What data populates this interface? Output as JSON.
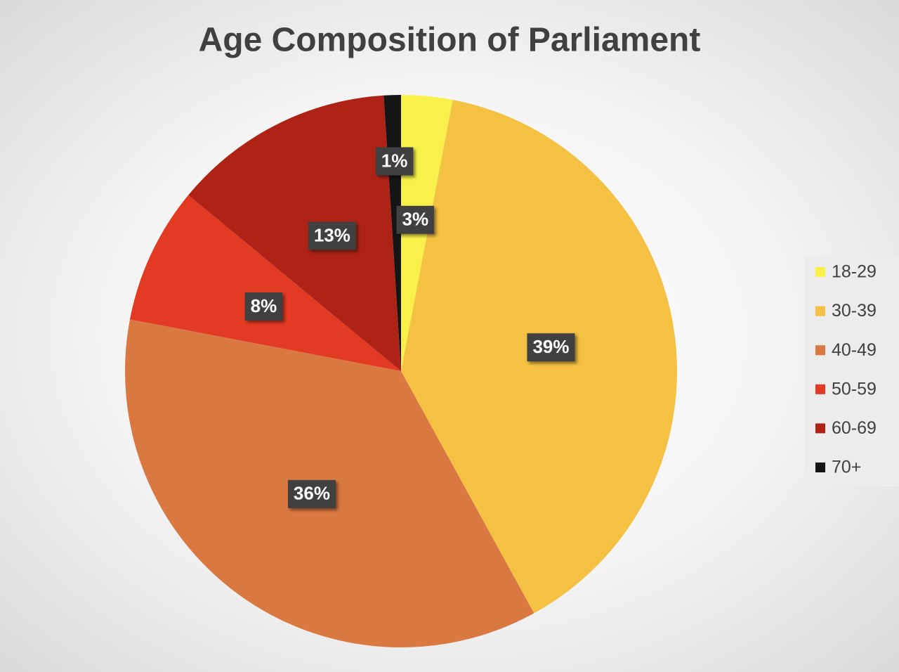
{
  "chart_data": {
    "type": "pie",
    "title": "Age Composition of Parliament",
    "categories": [
      "18-29",
      "30-39",
      "40-49",
      "50-59",
      "60-69",
      "70+"
    ],
    "values": [
      3,
      39,
      36,
      8,
      13,
      1
    ],
    "value_labels": [
      "3%",
      "39%",
      "36%",
      "8%",
      "13%",
      "1%"
    ],
    "colors": [
      "#f9f14a",
      "#f4c142",
      "#d97840",
      "#e33a24",
      "#ae2316",
      "#151515"
    ],
    "legend": "right"
  }
}
